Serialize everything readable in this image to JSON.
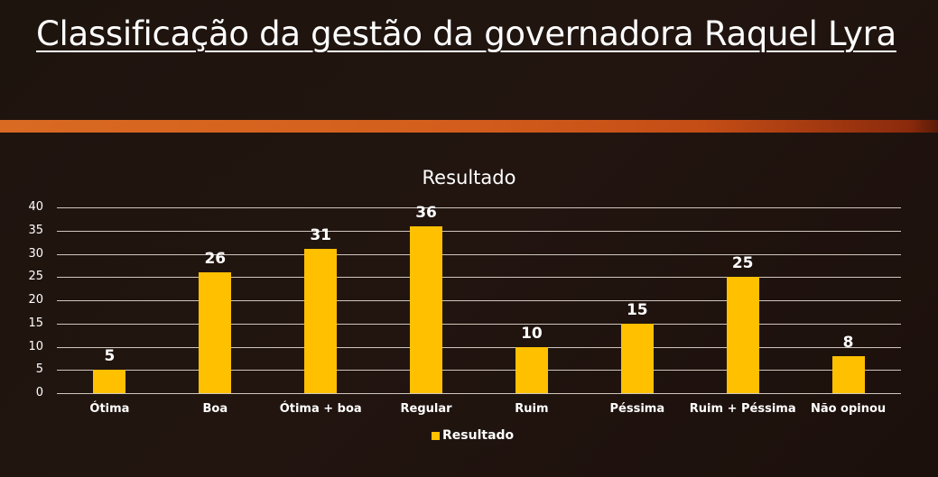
{
  "page": {
    "title": "Classificação da gestão da governadora Raquel Lyra"
  },
  "colors": {
    "bar": "#ffc000",
    "accent_band": "#d4601d",
    "background": "#1f140f"
  },
  "chart": {
    "title": "Resultado",
    "legend_label": "Resultado",
    "y_ticks": [
      "40",
      "35",
      "30",
      "25",
      "20",
      "15",
      "10",
      "5",
      "0"
    ],
    "categories": [
      "Ótima",
      "Boa",
      "Ótima + boa",
      "Regular",
      "Ruim",
      "Péssima",
      "Ruim + Péssima",
      "Não opinou"
    ],
    "value_labels": [
      "5",
      "26",
      "31",
      "36",
      "10",
      "15",
      "25",
      "8"
    ]
  },
  "chart_data": {
    "type": "bar",
    "title": "Resultado",
    "categories": [
      "Ótima",
      "Boa",
      "Ótima + boa",
      "Regular",
      "Ruim",
      "Péssima",
      "Ruim + Péssima",
      "Não opinou"
    ],
    "series": [
      {
        "name": "Resultado",
        "values": [
          5,
          26,
          31,
          36,
          10,
          15,
          25,
          8
        ]
      }
    ],
    "xlabel": "",
    "ylabel": "",
    "ylim": [
      0,
      40
    ],
    "yticks": [
      0,
      5,
      10,
      15,
      20,
      25,
      30,
      35,
      40
    ],
    "grid": true,
    "legend_position": "bottom",
    "data_labels": true
  }
}
